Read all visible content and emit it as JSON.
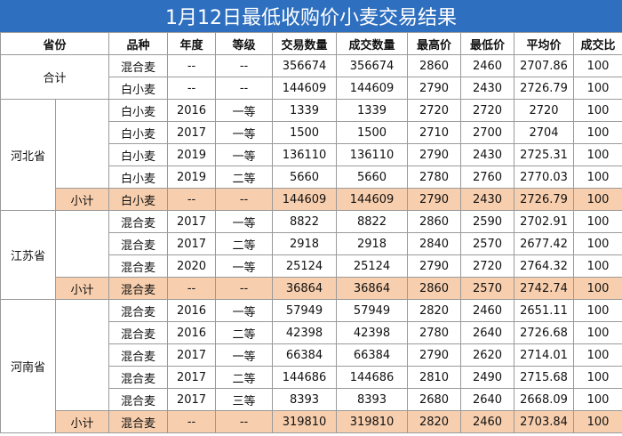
{
  "title": "1月12日最低收购价小麦交易结果",
  "headers": {
    "province": "省份",
    "variety": "品种",
    "year": "年度",
    "grade": "等级",
    "deal_qty": "交易数量",
    "done_qty": "成交数量",
    "max_price": "最高价",
    "min_price": "最低价",
    "avg_price": "平均价",
    "deal_ratio": "成交比"
  },
  "total": {
    "label": "合计",
    "rows": [
      {
        "variety": "混合麦",
        "year": "--",
        "grade": "--",
        "deal": "356674",
        "done": "356674",
        "max": "2860",
        "min": "2460",
        "avg": "2707.86",
        "ratio": "100"
      },
      {
        "variety": "白小麦",
        "year": "--",
        "grade": "--",
        "deal": "144609",
        "done": "144609",
        "max": "2790",
        "min": "2430",
        "avg": "2726.79",
        "ratio": "100"
      }
    ]
  },
  "hebei": {
    "name": "河北省",
    "rows": [
      {
        "variety": "白小麦",
        "year": "2016",
        "grade": "一等",
        "deal": "1339",
        "done": "1339",
        "max": "2720",
        "min": "2720",
        "avg": "2720",
        "ratio": "100"
      },
      {
        "variety": "白小麦",
        "year": "2017",
        "grade": "一等",
        "deal": "1500",
        "done": "1500",
        "max": "2710",
        "min": "2700",
        "avg": "2704",
        "ratio": "100"
      },
      {
        "variety": "白小麦",
        "year": "2019",
        "grade": "一等",
        "deal": "136110",
        "done": "136110",
        "max": "2790",
        "min": "2430",
        "avg": "2725.31",
        "ratio": "100"
      },
      {
        "variety": "白小麦",
        "year": "2019",
        "grade": "二等",
        "deal": "5660",
        "done": "5660",
        "max": "2780",
        "min": "2760",
        "avg": "2770.03",
        "ratio": "100"
      }
    ],
    "subtotal": {
      "label": "小计",
      "variety": "白小麦",
      "year": "--",
      "grade": "--",
      "deal": "144609",
      "done": "144609",
      "max": "2790",
      "min": "2430",
      "avg": "2726.79",
      "ratio": "100"
    }
  },
  "jiangsu": {
    "name": "江苏省",
    "rows": [
      {
        "variety": "混合麦",
        "year": "2017",
        "grade": "一等",
        "deal": "8822",
        "done": "8822",
        "max": "2860",
        "min": "2590",
        "avg": "2702.91",
        "ratio": "100"
      },
      {
        "variety": "混合麦",
        "year": "2017",
        "grade": "二等",
        "deal": "2918",
        "done": "2918",
        "max": "2840",
        "min": "2570",
        "avg": "2677.42",
        "ratio": "100"
      },
      {
        "variety": "混合麦",
        "year": "2020",
        "grade": "一等",
        "deal": "25124",
        "done": "25124",
        "max": "2790",
        "min": "2720",
        "avg": "2764.32",
        "ratio": "100"
      }
    ],
    "subtotal": {
      "label": "小计",
      "variety": "混合麦",
      "year": "--",
      "grade": "--",
      "deal": "36864",
      "done": "36864",
      "max": "2860",
      "min": "2570",
      "avg": "2742.74",
      "ratio": "100"
    }
  },
  "henan": {
    "name": "河南省",
    "rows": [
      {
        "variety": "混合麦",
        "year": "2016",
        "grade": "一等",
        "deal": "57949",
        "done": "57949",
        "max": "2820",
        "min": "2460",
        "avg": "2651.11",
        "ratio": "100"
      },
      {
        "variety": "混合麦",
        "year": "2016",
        "grade": "二等",
        "deal": "42398",
        "done": "42398",
        "max": "2780",
        "min": "2640",
        "avg": "2726.68",
        "ratio": "100"
      },
      {
        "variety": "混合麦",
        "year": "2017",
        "grade": "一等",
        "deal": "66384",
        "done": "66384",
        "max": "2790",
        "min": "2620",
        "avg": "2714.01",
        "ratio": "100"
      },
      {
        "variety": "混合麦",
        "year": "2017",
        "grade": "二等",
        "deal": "144686",
        "done": "144686",
        "max": "2810",
        "min": "2490",
        "avg": "2715.68",
        "ratio": "100"
      },
      {
        "variety": "混合麦",
        "year": "2017",
        "grade": "三等",
        "deal": "8393",
        "done": "8393",
        "max": "2680",
        "min": "2640",
        "avg": "2668.09",
        "ratio": "100"
      }
    ],
    "subtotal": {
      "label": "小计",
      "variety": "混合麦",
      "year": "--",
      "grade": "--",
      "deal": "319810",
      "done": "319810",
      "max": "2820",
      "min": "2460",
      "avg": "2703.84",
      "ratio": "100"
    }
  },
  "colors": {
    "title_bg": "#2f6fbf",
    "subtotal_bg": "#f8cfae"
  }
}
